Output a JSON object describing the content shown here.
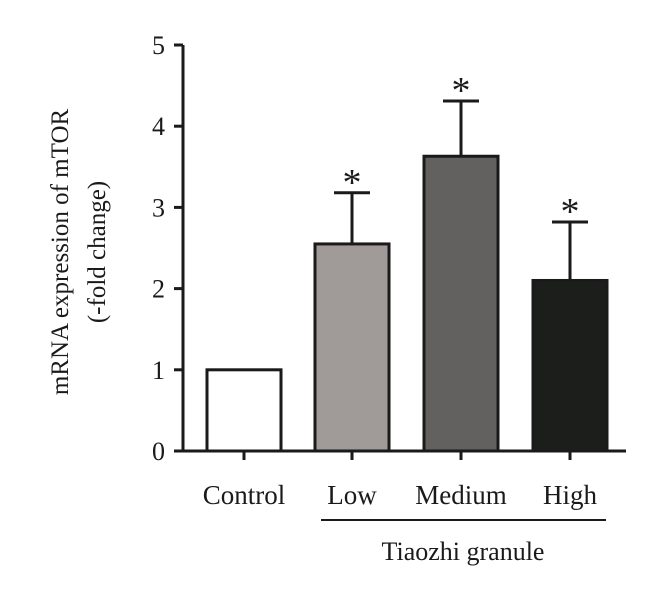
{
  "chart_data": {
    "type": "bar",
    "categories": [
      "Control",
      "Low",
      "Medium",
      "High"
    ],
    "values": [
      1.0,
      2.55,
      3.63,
      2.1
    ],
    "error_upper": [
      1.0,
      3.18,
      4.31,
      2.82
    ],
    "significance": [
      "",
      "*",
      "*",
      "*"
    ],
    "bar_colors": [
      "#ffffff",
      "#a09a99",
      "#636060",
      "#1c1e1b"
    ],
    "edge_color": "#1a1a1a",
    "title": "",
    "xlabel": "",
    "ylabel_lines": [
      "mRNA expression of mTOR",
      "(-fold change)"
    ],
    "ylim": [
      0,
      5
    ],
    "yticks": [
      "0",
      "1",
      "2",
      "3",
      "4",
      "5"
    ],
    "group_label": "Tiaozhi granule",
    "grid": false,
    "legend": "none"
  }
}
